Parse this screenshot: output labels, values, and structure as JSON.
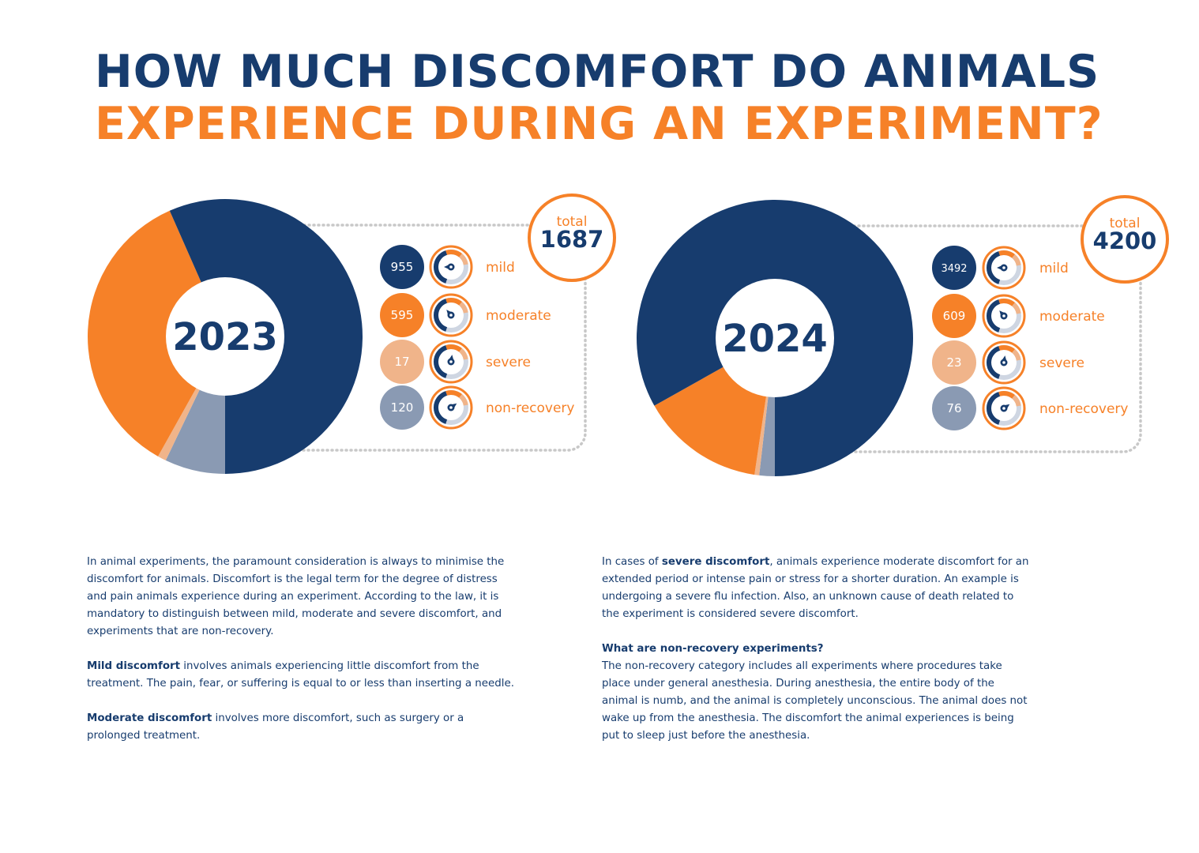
{
  "title": {
    "line1": "HOW MUCH DISCOMFORT DO ANIMALS",
    "line2": "EXPERIENCE DURING AN EXPERIMENT?"
  },
  "colors": {
    "mild": "#173c6e",
    "moderate": "#f68128",
    "severe": "#f0b48a",
    "non_recovery": "#8a9ab3",
    "dotted_frame": "#c8c8c8"
  },
  "chart_data": [
    {
      "type": "pie",
      "title": "2023",
      "total_label": "total",
      "total": 1687,
      "categories": [
        "mild",
        "moderate",
        "severe",
        "non-recovery"
      ],
      "values": [
        955,
        595,
        17,
        120
      ],
      "value_labels": [
        "955",
        "595",
        "17",
        "120"
      ],
      "icons": [
        "gauge-icon-mild",
        "gauge-icon-moderate",
        "gauge-icon-severe",
        "gauge-icon-non-recovery"
      ]
    },
    {
      "type": "pie",
      "title": "2024",
      "total_label": "total",
      "total": 4200,
      "categories": [
        "mild",
        "moderate",
        "severe",
        "non-recovery"
      ],
      "values": [
        3492,
        609,
        23,
        76
      ],
      "value_labels": [
        "3492",
        "609",
        "23",
        "76"
      ],
      "icons": [
        "gauge-icon-mild",
        "gauge-icon-moderate",
        "gauge-icon-severe",
        "gauge-icon-non-recovery"
      ]
    }
  ],
  "text": {
    "left": {
      "p1": "In animal experiments, the paramount consideration is always to minimise the discomfort for animals. Discomfort is the legal term for the degree of distress and pain animals experience during an experiment. According to the law, it is mandatory to distinguish between mild, moderate and severe discomfort, and experiments that are non-recovery.",
      "p2_bold": "Mild discomfort",
      "p2": " involves animals experiencing little discomfort from the treatment. The pain, fear, or suffering is equal to or less than inserting a needle.",
      "p3_bold": "Moderate discomfort",
      "p3": " involves more discomfort, such as surgery or a prolonged treatment."
    },
    "right": {
      "p1_pre": "In cases of ",
      "p1_bold": "severe discomfort",
      "p1": ", animals experience moderate discomfort for an extended period or intense pain or stress for a shorter duration. An example is undergoing a severe flu infection. Also, an unknown cause of death related to the experiment is considered severe discomfort.",
      "p2_heading": "What are non-recovery experiments?",
      "p2": "The non-recovery category includes all experiments where procedures take place under general anesthesia. During anesthesia, the entire body of the animal is numb, and the animal is completely unconscious. The animal does not wake up from the anesthesia. The discomfort the animal experiences is being put to sleep just before the anesthesia."
    }
  }
}
